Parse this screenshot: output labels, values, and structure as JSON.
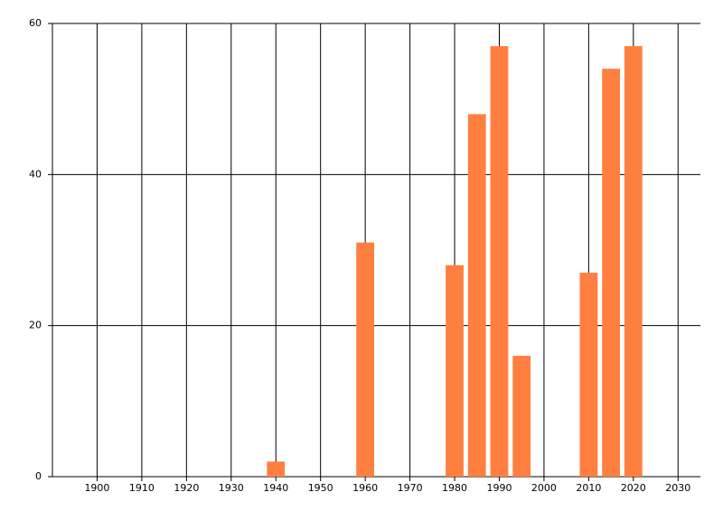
{
  "chart_data": {
    "type": "bar",
    "x": [
      1940,
      1960,
      1980,
      1985,
      1990,
      1995,
      2010,
      2015,
      2020
    ],
    "values": [
      2,
      31,
      28,
      48,
      57,
      16,
      27,
      54,
      57
    ],
    "color": "#ff7f3f",
    "xlim": [
      1890,
      2035
    ],
    "xticks": [
      1900,
      1910,
      1920,
      1930,
      1940,
      1950,
      1960,
      1970,
      1980,
      1990,
      2000,
      2010,
      2020,
      2030
    ],
    "ylim": [
      0,
      60
    ],
    "yticks": [
      0,
      20,
      40,
      60
    ],
    "grid": true
  }
}
